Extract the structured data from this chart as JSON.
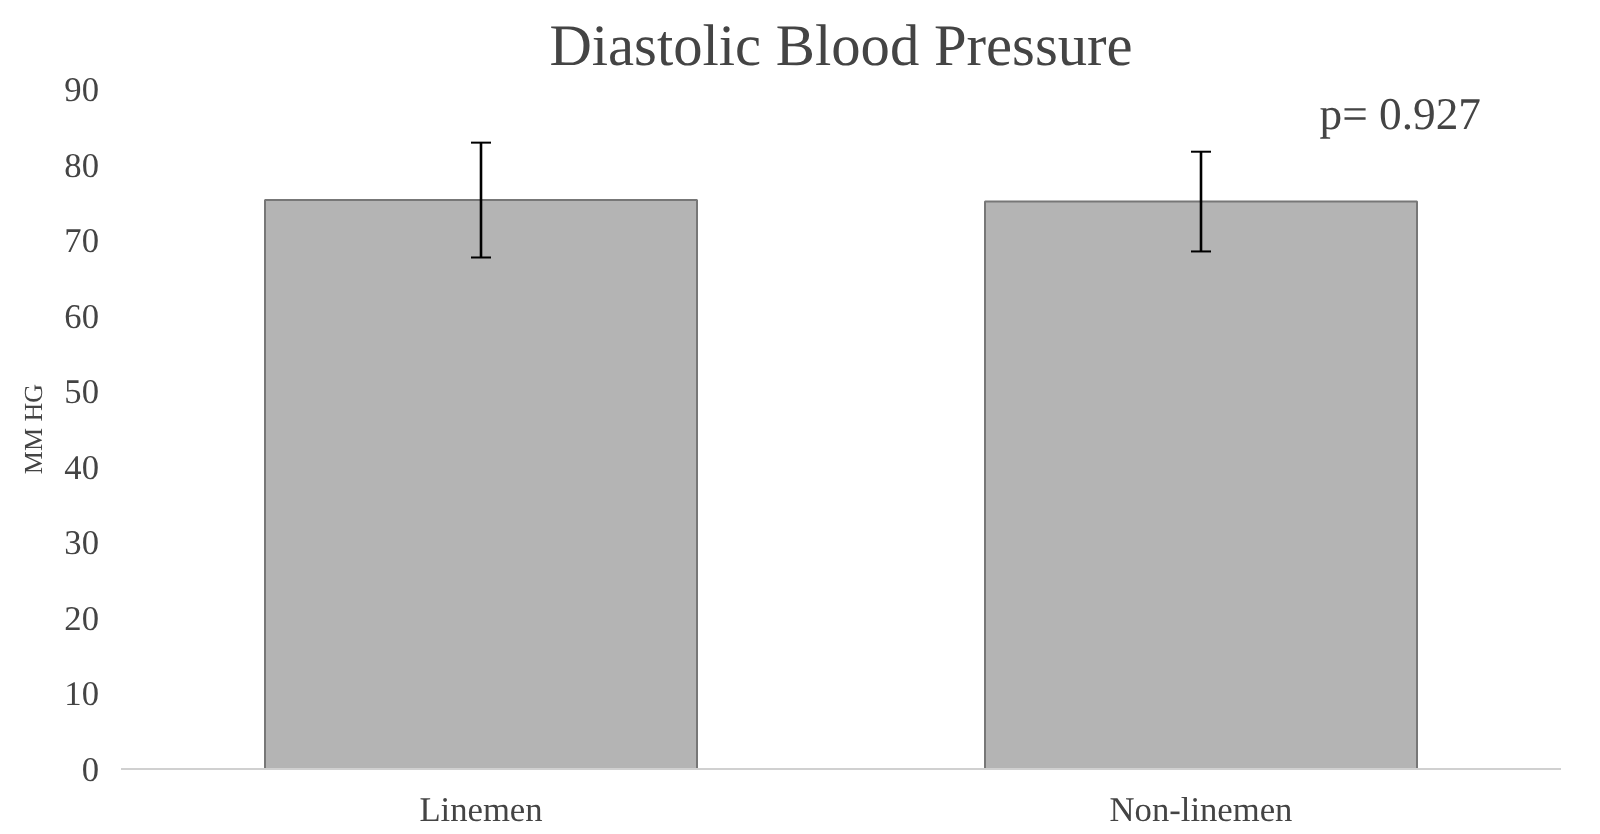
{
  "chart_data": {
    "type": "bar",
    "title": "Diastolic Blood Pressure",
    "ylabel": "MM HG",
    "categories": [
      "Linemen",
      "Non-linemen"
    ],
    "values": [
      75.3,
      75.1
    ],
    "errors": [
      7.6,
      6.6
    ],
    "color": "#b4b4b4",
    "ylim": [
      0,
      90
    ],
    "yticks": [
      0,
      10,
      20,
      30,
      40,
      50,
      60,
      70,
      80,
      90
    ],
    "annotations": [
      "p= 0.927"
    ]
  }
}
